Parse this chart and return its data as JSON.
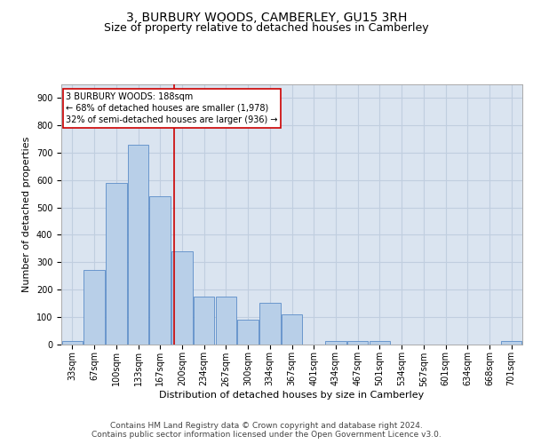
{
  "title_line1": "3, BURBURY WOODS, CAMBERLEY, GU15 3RH",
  "title_line2": "Size of property relative to detached houses in Camberley",
  "xlabel": "Distribution of detached houses by size in Camberley",
  "ylabel": "Number of detached properties",
  "categories": [
    "33sqm",
    "67sqm",
    "100sqm",
    "133sqm",
    "167sqm",
    "200sqm",
    "234sqm",
    "267sqm",
    "300sqm",
    "334sqm",
    "367sqm",
    "401sqm",
    "434sqm",
    "467sqm",
    "501sqm",
    "534sqm",
    "567sqm",
    "601sqm",
    "634sqm",
    "668sqm",
    "701sqm"
  ],
  "values": [
    10,
    270,
    590,
    730,
    540,
    340,
    175,
    175,
    90,
    150,
    110,
    0,
    10,
    10,
    10,
    0,
    0,
    0,
    0,
    0,
    10
  ],
  "bar_color": "#b8cfe8",
  "bar_edge_color": "#5b8cc8",
  "grid_color": "#c0cedf",
  "background_color": "#dae4f0",
  "annotation_text": "3 BURBURY WOODS: 188sqm\n← 68% of detached houses are smaller (1,978)\n32% of semi-detached houses are larger (936) →",
  "vline_color": "#cc0000",
  "footer_line1": "Contains HM Land Registry data © Crown copyright and database right 2024.",
  "footer_line2": "Contains public sector information licensed under the Open Government Licence v3.0.",
  "ylim": [
    0,
    950
  ],
  "yticks": [
    0,
    100,
    200,
    300,
    400,
    500,
    600,
    700,
    800,
    900
  ],
  "title_fontsize": 10,
  "subtitle_fontsize": 9,
  "axis_label_fontsize": 8,
  "tick_fontsize": 7,
  "annotation_fontsize": 7,
  "footer_fontsize": 6.5
}
